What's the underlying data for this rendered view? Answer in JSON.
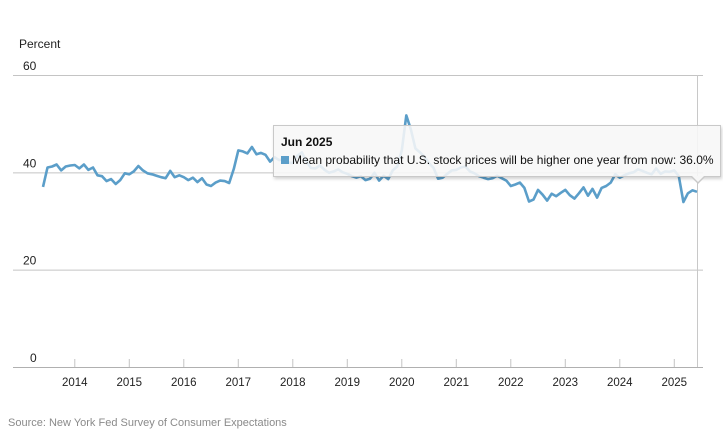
{
  "chart_data": {
    "type": "line",
    "title": "",
    "ylabel": "Percent",
    "xlabel": "",
    "ylim": [
      0,
      60
    ],
    "yticks": [
      0,
      20,
      40,
      60
    ],
    "grid": true,
    "x_tick_labels": [
      "2014",
      "2015",
      "2016",
      "2017",
      "2018",
      "2019",
      "2020",
      "2021",
      "2022",
      "2023",
      "2024",
      "2025"
    ],
    "x_start": "Jun 2013",
    "x_end": "Jun 2025",
    "frequency": "monthly",
    "series": [
      {
        "name": "Mean probability that U.S. stock prices will be higher one year from now",
        "color": "#5b9ec9",
        "values": [
          37.0,
          41.0,
          41.2,
          41.6,
          40.4,
          41.2,
          41.4,
          41.5,
          40.8,
          41.6,
          40.5,
          41.0,
          39.4,
          39.2,
          38.2,
          38.6,
          37.6,
          38.4,
          39.8,
          39.6,
          40.2,
          41.3,
          40.4,
          39.8,
          39.6,
          39.3,
          39.0,
          38.8,
          40.3,
          39.0,
          39.4,
          39.0,
          38.4,
          38.9,
          38.0,
          38.8,
          37.5,
          37.2,
          37.9,
          38.3,
          38.2,
          37.8,
          40.7,
          44.5,
          44.3,
          43.9,
          45.2,
          43.7,
          44.0,
          43.6,
          42.2,
          43.1,
          42.5,
          42.8,
          42.0,
          41.9,
          43.4,
          44.1,
          42.2,
          40.9,
          40.8,
          41.4,
          40.5,
          39.9,
          40.2,
          40.6,
          40.0,
          39.7,
          39.2,
          38.9,
          39.2,
          38.4,
          38.7,
          39.9,
          38.3,
          39.3,
          38.6,
          40.4,
          41.2,
          44.5,
          51.7,
          48.8,
          44.9,
          44.1,
          43.2,
          41.9,
          40.9,
          38.7,
          38.9,
          39.7,
          40.4,
          40.5,
          41.0,
          41.2,
          40.2,
          39.8,
          39.2,
          38.9,
          38.6,
          38.8,
          39.3,
          38.8,
          38.3,
          37.2,
          37.5,
          37.9,
          36.8,
          34.0,
          34.4,
          36.4,
          35.4,
          34.2,
          35.6,
          35.1,
          35.8,
          36.4,
          35.3,
          34.6,
          35.7,
          36.9,
          35.2,
          36.6,
          34.8,
          36.8,
          37.2,
          37.9,
          39.6,
          38.9,
          39.4,
          39.8,
          40.0,
          40.6,
          40.3,
          39.9,
          39.6,
          40.8,
          39.7,
          40.2,
          40.1,
          40.4,
          39.2,
          33.9,
          35.7,
          36.3,
          36.0
        ]
      }
    ],
    "tooltip": {
      "date": "Jun 2025",
      "label": "Mean probability that U.S. stock prices will be higher one year from now",
      "value": "36.0%"
    },
    "legend": "none"
  },
  "tooltip": {
    "title": "Jun 2025",
    "row": "Mean probability that U.S. stock prices will be higher one year from now: 36.0%",
    "swatch_color": "#5b9ec9"
  },
  "source": "Source: New York Fed Survey of Consumer Expectations"
}
